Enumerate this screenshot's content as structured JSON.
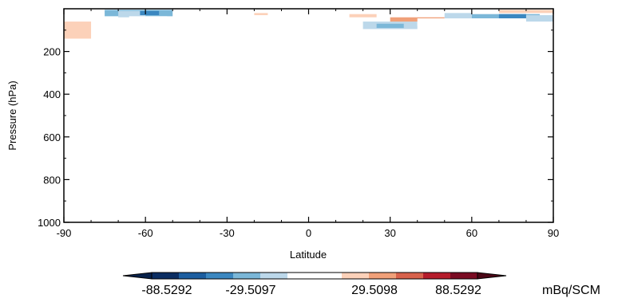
{
  "chart_data": {
    "type": "heatmap",
    "xlabel": "Latitude",
    "ylabel": "Pressure (hPa)",
    "xlim": [
      -90,
      90
    ],
    "ylim": [
      1000,
      0
    ],
    "x_ticks": [
      -90,
      -60,
      -30,
      0,
      30,
      60,
      90
    ],
    "y_ticks": [
      200,
      400,
      600,
      800,
      1000
    ],
    "units": "mBq/SCM",
    "colorbar": {
      "labels": [
        "-88.5292",
        "-29.5097",
        "29.5098",
        "88.5292"
      ],
      "colors": [
        "#0b2d62",
        "#1c5ea0",
        "#3b87c0",
        "#7bb7d8",
        "#bcd8ea",
        "#ffffff",
        "#ffffff",
        "#fcd1b9",
        "#f0a079",
        "#d8624c",
        "#b51c2b",
        "#7a0b22"
      ]
    },
    "cells": [
      {
        "lat": [
          -90,
          -80
        ],
        "p": [
          60,
          140
        ],
        "value": 40
      },
      {
        "lat": [
          -88,
          -80
        ],
        "p": [
          140,
          200
        ],
        "value": 20
      },
      {
        "lat": [
          -88,
          -80
        ],
        "p": [
          200,
          230
        ],
        "value": 20
      },
      {
        "lat": [
          -90,
          -70
        ],
        "p": [
          5,
          15
        ],
        "value": -20
      },
      {
        "lat": [
          -85,
          -70
        ],
        "p": [
          15,
          25
        ],
        "value": -20
      },
      {
        "lat": [
          -75,
          -50
        ],
        "p": [
          5,
          35
        ],
        "value": -50
      },
      {
        "lat": [
          -70,
          -60
        ],
        "p": [
          10,
          40
        ],
        "value": -35
      },
      {
        "lat": [
          -62,
          -55
        ],
        "p": [
          10,
          30
        ],
        "value": -85
      },
      {
        "lat": [
          -66,
          -52
        ],
        "p": [
          35,
          50
        ],
        "value": -15
      },
      {
        "lat": [
          -52,
          -40
        ],
        "p": [
          40,
          55
        ],
        "value": -15
      },
      {
        "lat": [
          -55,
          -30
        ],
        "p": [
          100,
          160
        ],
        "value": 20
      },
      {
        "lat": [
          -45,
          -30
        ],
        "p": [
          160,
          200
        ],
        "value": 20
      },
      {
        "lat": [
          -40,
          -35
        ],
        "p": [
          5,
          15
        ],
        "value": 20
      },
      {
        "lat": [
          -30,
          -20
        ],
        "p": [
          10,
          25
        ],
        "value": -15
      },
      {
        "lat": [
          -20,
          -15
        ],
        "p": [
          20,
          40
        ],
        "value": 30
      },
      {
        "lat": [
          -25,
          -10
        ],
        "p": [
          30,
          55
        ],
        "value": -20
      },
      {
        "lat": [
          -10,
          0
        ],
        "p": [
          50,
          70
        ],
        "value": -15
      },
      {
        "lat": [
          -30,
          -20
        ],
        "p": [
          55,
          75
        ],
        "value": -15
      },
      {
        "lat": [
          5,
          30
        ],
        "p": [
          60,
          80
        ],
        "value": -15
      },
      {
        "lat": [
          10,
          20
        ],
        "p": [
          80,
          100
        ],
        "value": -15
      },
      {
        "lat": [
          15,
          25
        ],
        "p": [
          25,
          40
        ],
        "value": 25
      },
      {
        "lat": [
          20,
          30
        ],
        "p": [
          45,
          60
        ],
        "value": 20
      },
      {
        "lat": [
          20,
          40
        ],
        "p": [
          60,
          95
        ],
        "value": -30
      },
      {
        "lat": [
          25,
          35
        ],
        "p": [
          70,
          90
        ],
        "value": -45
      },
      {
        "lat": [
          30,
          50
        ],
        "p": [
          40,
          60
        ],
        "value": 50
      },
      {
        "lat": [
          40,
          55
        ],
        "p": [
          45,
          80
        ],
        "value": 20
      },
      {
        "lat": [
          55,
          70
        ],
        "p": [
          10,
          30
        ],
        "value": -20
      },
      {
        "lat": [
          50,
          60
        ],
        "p": [
          20,
          45
        ],
        "value": -25
      },
      {
        "lat": [
          60,
          85
        ],
        "p": [
          25,
          45
        ],
        "value": -50
      },
      {
        "lat": [
          70,
          80
        ],
        "p": [
          25,
          45
        ],
        "value": -85
      },
      {
        "lat": [
          60,
          90
        ],
        "p": [
          45,
          70
        ],
        "value": -15
      },
      {
        "lat": [
          70,
          90
        ],
        "p": [
          5,
          20
        ],
        "value": 30
      },
      {
        "lat": [
          60,
          70
        ],
        "p": [
          5,
          15
        ],
        "value": 15
      },
      {
        "lat": [
          80,
          90
        ],
        "p": [
          30,
          60
        ],
        "value": -30
      }
    ]
  }
}
